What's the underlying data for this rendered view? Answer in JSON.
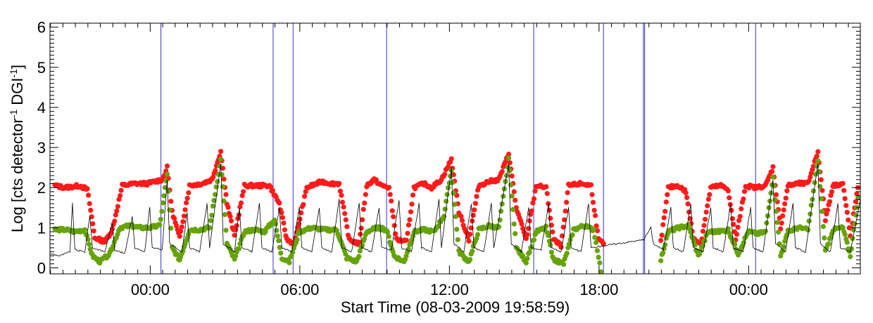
{
  "chart_data": {
    "type": "scatter",
    "xlabel": "Start Time (08-03-2009 19:58:59)",
    "ylabel_parts": [
      "Log [cts detector",
      "-1",
      " DGI",
      "-1",
      "]"
    ],
    "x_unit": "hours since start",
    "xlim": [
      0,
      32.5
    ],
    "ylim": [
      -0.15,
      6.1
    ],
    "y_ticks": [
      0,
      1,
      2,
      3,
      4,
      5,
      6
    ],
    "y_tick_labels": [
      "0",
      "1",
      "2",
      "3",
      "4",
      "5",
      "6"
    ],
    "x_ticks": [
      4.02,
      10.02,
      16.02,
      22.02,
      28.02
    ],
    "x_tick_labels": [
      "00:00",
      "06:00",
      "12:00",
      "18:00",
      "00:00"
    ],
    "grid": false,
    "vertical_lines_color": "#3333cc",
    "vertical_lines_x": [
      4.45,
      8.95,
      9.75,
      13.5,
      19.4,
      22.2,
      23.8,
      23.85,
      28.3
    ],
    "data_gap": [
      22.2,
      23.75
    ],
    "series": [
      {
        "color": "#ff1a1a",
        "marker": "filled-circle",
        "description_points": [
          [
            0.2,
            2.05
          ],
          [
            0.6,
            2.0
          ],
          [
            1.2,
            2.05
          ],
          [
            1.5,
            1.95
          ],
          [
            1.8,
            0.75
          ],
          [
            2.2,
            0.65
          ],
          [
            2.5,
            0.95
          ],
          [
            2.9,
            2.05
          ],
          [
            3.4,
            2.1
          ],
          [
            3.9,
            2.1
          ],
          [
            4.5,
            2.2
          ],
          [
            4.7,
            2.5
          ],
          [
            4.9,
            1.4
          ],
          [
            5.2,
            0.75
          ],
          [
            5.6,
            2.05
          ],
          [
            6.1,
            2.1
          ],
          [
            6.5,
            2.2
          ],
          [
            6.85,
            2.9
          ],
          [
            7.1,
            1.6
          ],
          [
            7.4,
            0.8
          ],
          [
            7.8,
            2.05
          ],
          [
            8.3,
            2.05
          ],
          [
            8.8,
            2.05
          ],
          [
            9.2,
            1.6
          ],
          [
            9.5,
            0.7
          ],
          [
            9.8,
            0.6
          ],
          [
            10.3,
            2.0
          ],
          [
            10.9,
            2.15
          ],
          [
            11.3,
            2.1
          ],
          [
            11.6,
            2.1
          ],
          [
            12.0,
            0.7
          ],
          [
            12.4,
            0.6
          ],
          [
            12.7,
            2.05
          ],
          [
            13.0,
            2.2
          ],
          [
            13.3,
            2.05
          ],
          [
            13.6,
            2.0
          ],
          [
            13.9,
            0.7
          ],
          [
            14.3,
            0.65
          ],
          [
            14.6,
            2.0
          ],
          [
            15.0,
            2.1
          ],
          [
            15.3,
            2.0
          ],
          [
            15.7,
            2.2
          ],
          [
            16.1,
            2.7
          ],
          [
            16.4,
            1.4
          ],
          [
            16.8,
            0.7
          ],
          [
            17.2,
            2.05
          ],
          [
            17.6,
            2.15
          ],
          [
            18.0,
            2.2
          ],
          [
            18.4,
            2.85
          ],
          [
            18.7,
            1.5
          ],
          [
            19.1,
            0.7
          ],
          [
            19.5,
            2.05
          ],
          [
            19.9,
            2.0
          ],
          [
            20.2,
            0.7
          ],
          [
            20.5,
            0.55
          ],
          [
            20.8,
            2.05
          ],
          [
            21.3,
            2.1
          ],
          [
            21.7,
            2.05
          ],
          [
            22.0,
            0.7
          ],
          [
            22.2,
            0.6
          ],
          [
            24.5,
            0.65
          ],
          [
            24.8,
            2.0
          ],
          [
            25.2,
            2.05
          ],
          [
            25.5,
            1.9
          ],
          [
            25.8,
            0.75
          ],
          [
            26.1,
            0.6
          ],
          [
            26.5,
            2.0
          ],
          [
            26.9,
            2.05
          ],
          [
            27.2,
            1.95
          ],
          [
            27.5,
            0.7
          ],
          [
            27.9,
            2.05
          ],
          [
            28.3,
            2.0
          ],
          [
            28.7,
            2.05
          ],
          [
            29.0,
            2.5
          ],
          [
            29.3,
            1.0
          ],
          [
            29.6,
            2.05
          ],
          [
            30.0,
            2.1
          ],
          [
            30.4,
            2.1
          ],
          [
            30.8,
            2.9
          ],
          [
            31.1,
            1.2
          ],
          [
            31.4,
            2.05
          ],
          [
            31.8,
            2.1
          ],
          [
            32.1,
            0.8
          ],
          [
            32.4,
            2.0
          ]
        ]
      },
      {
        "color": "#66a30a",
        "marker": "filled-circle",
        "description_points": [
          [
            0.2,
            0.95
          ],
          [
            0.6,
            0.95
          ],
          [
            1.0,
            0.9
          ],
          [
            1.4,
            0.95
          ],
          [
            1.7,
            0.3
          ],
          [
            2.0,
            0.15
          ],
          [
            2.4,
            0.35
          ],
          [
            2.8,
            1.0
          ],
          [
            3.2,
            1.05
          ],
          [
            3.6,
            1.0
          ],
          [
            4.0,
            1.0
          ],
          [
            4.4,
            1.05
          ],
          [
            4.7,
            2.35
          ],
          [
            4.9,
            0.5
          ],
          [
            5.2,
            0.2
          ],
          [
            5.6,
            0.95
          ],
          [
            6.0,
            0.95
          ],
          [
            6.4,
            1.0
          ],
          [
            6.85,
            2.7
          ],
          [
            7.1,
            0.6
          ],
          [
            7.4,
            0.2
          ],
          [
            7.8,
            0.9
          ],
          [
            8.2,
            0.95
          ],
          [
            8.6,
            0.9
          ],
          [
            9.0,
            1.2
          ],
          [
            9.3,
            0.25
          ],
          [
            9.6,
            0.15
          ],
          [
            10.0,
            0.9
          ],
          [
            10.5,
            1.0
          ],
          [
            11.0,
            0.95
          ],
          [
            11.5,
            0.95
          ],
          [
            11.9,
            0.25
          ],
          [
            12.3,
            0.15
          ],
          [
            12.7,
            0.9
          ],
          [
            13.1,
            1.0
          ],
          [
            13.5,
            0.95
          ],
          [
            13.8,
            0.3
          ],
          [
            14.2,
            0.15
          ],
          [
            14.6,
            0.9
          ],
          [
            15.0,
            0.95
          ],
          [
            15.4,
            0.9
          ],
          [
            15.8,
            1.3
          ],
          [
            16.1,
            2.45
          ],
          [
            16.4,
            0.4
          ],
          [
            16.8,
            0.15
          ],
          [
            17.2,
            0.95
          ],
          [
            17.6,
            1.05
          ],
          [
            18.0,
            1.0
          ],
          [
            18.4,
            2.7
          ],
          [
            18.7,
            0.5
          ],
          [
            19.1,
            0.15
          ],
          [
            19.5,
            0.9
          ],
          [
            19.9,
            1.0
          ],
          [
            20.2,
            0.2
          ],
          [
            20.6,
            0.1
          ],
          [
            21.0,
            0.95
          ],
          [
            21.4,
            1.05
          ],
          [
            21.8,
            0.95
          ],
          [
            22.0,
            0.3
          ],
          [
            22.1,
            -0.1
          ],
          [
            24.5,
            0.2
          ],
          [
            24.8,
            0.9
          ],
          [
            25.2,
            1.0
          ],
          [
            25.6,
            1.05
          ],
          [
            26.0,
            0.3
          ],
          [
            26.4,
            0.9
          ],
          [
            26.8,
            0.9
          ],
          [
            27.2,
            0.95
          ],
          [
            27.6,
            0.35
          ],
          [
            28.0,
            0.9
          ],
          [
            28.4,
            0.85
          ],
          [
            28.7,
            0.9
          ],
          [
            29.0,
            2.3
          ],
          [
            29.3,
            0.3
          ],
          [
            29.6,
            0.9
          ],
          [
            30.0,
            1.0
          ],
          [
            30.4,
            0.95
          ],
          [
            30.8,
            2.7
          ],
          [
            31.1,
            0.4
          ],
          [
            31.4,
            0.95
          ],
          [
            31.8,
            1.0
          ],
          [
            32.1,
            0.3
          ],
          [
            32.4,
            1.75
          ]
        ]
      },
      {
        "color": "#000000",
        "marker": "thin-line",
        "description_points": [
          [
            0.0,
            0.35
          ],
          [
            0.4,
            0.3
          ],
          [
            0.8,
            0.4
          ],
          [
            0.9,
            1.6
          ],
          [
            1.0,
            0.45
          ],
          [
            1.4,
            0.4
          ],
          [
            1.6,
            1.3
          ],
          [
            1.7,
            0.5
          ],
          [
            2.2,
            0.4
          ],
          [
            2.5,
            1.1
          ],
          [
            2.6,
            0.45
          ],
          [
            3.0,
            0.35
          ],
          [
            3.3,
            1.3
          ],
          [
            3.4,
            0.5
          ],
          [
            3.8,
            0.4
          ],
          [
            4.0,
            1.5
          ],
          [
            4.1,
            0.5
          ],
          [
            4.5,
            0.45
          ],
          [
            4.7,
            2.2
          ],
          [
            4.8,
            0.6
          ],
          [
            5.3,
            0.4
          ],
          [
            5.5,
            1.4
          ],
          [
            5.6,
            0.5
          ],
          [
            6.0,
            0.4
          ],
          [
            6.3,
            1.6
          ],
          [
            6.4,
            0.5
          ],
          [
            6.85,
            2.6
          ],
          [
            6.95,
            0.6
          ],
          [
            7.4,
            0.4
          ],
          [
            7.6,
            1.5
          ],
          [
            7.7,
            0.5
          ],
          [
            8.1,
            0.4
          ],
          [
            8.4,
            1.6
          ],
          [
            8.5,
            0.5
          ],
          [
            8.9,
            0.4
          ],
          [
            9.2,
            1.5
          ],
          [
            9.3,
            0.5
          ],
          [
            9.7,
            0.4
          ],
          [
            10.0,
            1.5
          ],
          [
            10.1,
            0.5
          ],
          [
            10.5,
            0.4
          ],
          [
            10.8,
            1.5
          ],
          [
            10.9,
            0.5
          ],
          [
            11.3,
            0.4
          ],
          [
            11.6,
            1.7
          ],
          [
            11.7,
            0.5
          ],
          [
            12.1,
            0.4
          ],
          [
            12.4,
            1.6
          ],
          [
            12.5,
            0.5
          ],
          [
            12.9,
            0.4
          ],
          [
            13.2,
            1.5
          ],
          [
            13.3,
            0.5
          ],
          [
            13.7,
            0.45
          ],
          [
            14.0,
            1.7
          ],
          [
            14.1,
            0.5
          ],
          [
            14.5,
            0.4
          ],
          [
            14.8,
            1.6
          ],
          [
            14.9,
            0.5
          ],
          [
            15.3,
            0.4
          ],
          [
            15.6,
            1.7
          ],
          [
            15.7,
            0.5
          ],
          [
            16.1,
            2.5
          ],
          [
            16.2,
            0.6
          ],
          [
            16.6,
            0.4
          ],
          [
            16.9,
            1.6
          ],
          [
            17.0,
            0.5
          ],
          [
            17.4,
            0.4
          ],
          [
            17.7,
            1.6
          ],
          [
            17.8,
            0.5
          ],
          [
            18.4,
            2.6
          ],
          [
            18.5,
            0.6
          ],
          [
            18.9,
            0.4
          ],
          [
            19.2,
            1.5
          ],
          [
            19.3,
            0.5
          ],
          [
            19.7,
            0.45
          ],
          [
            20.0,
            1.6
          ],
          [
            20.1,
            0.5
          ],
          [
            20.5,
            0.4
          ],
          [
            20.8,
            1.5
          ],
          [
            20.9,
            0.5
          ],
          [
            21.3,
            0.4
          ],
          [
            21.6,
            1.6
          ],
          [
            21.7,
            0.5
          ],
          [
            22.2,
            0.55
          ],
          [
            23.8,
            0.7
          ],
          [
            24.1,
            1.0
          ],
          [
            24.2,
            0.6
          ],
          [
            24.6,
            0.45
          ],
          [
            24.9,
            1.5
          ],
          [
            25.0,
            0.5
          ],
          [
            25.4,
            0.4
          ],
          [
            25.7,
            1.6
          ],
          [
            25.8,
            0.5
          ],
          [
            26.2,
            0.4
          ],
          [
            26.5,
            1.5
          ],
          [
            26.6,
            0.5
          ],
          [
            27.0,
            0.4
          ],
          [
            27.3,
            1.6
          ],
          [
            27.4,
            0.5
          ],
          [
            27.8,
            0.4
          ],
          [
            28.1,
            1.5
          ],
          [
            28.2,
            0.5
          ],
          [
            28.6,
            0.4
          ],
          [
            29.0,
            2.2
          ],
          [
            29.1,
            0.6
          ],
          [
            29.5,
            0.4
          ],
          [
            29.8,
            1.6
          ],
          [
            29.9,
            0.5
          ],
          [
            30.3,
            0.4
          ],
          [
            30.8,
            2.6
          ],
          [
            30.9,
            0.6
          ],
          [
            31.3,
            0.4
          ],
          [
            31.6,
            1.6
          ],
          [
            31.7,
            0.5
          ],
          [
            32.1,
            0.4
          ],
          [
            32.5,
            1.7
          ]
        ]
      }
    ]
  }
}
